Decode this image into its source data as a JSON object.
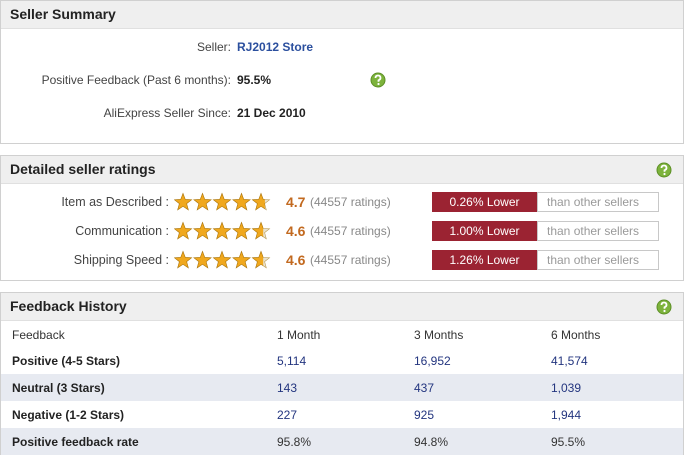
{
  "summary": {
    "title": "Seller Summary",
    "rows": [
      {
        "label": "Seller:",
        "value": "RJ2012 Store"
      },
      {
        "label": "Positive Feedback (Past 6 months):",
        "value": "95.5%"
      },
      {
        "label": "AliExpress Seller Since:",
        "value": "21 Dec 2010"
      }
    ]
  },
  "ratings": {
    "title": "Detailed seller ratings",
    "rows": [
      {
        "label": "Item as Described :",
        "rating": 4.7,
        "count": "(44557 ratings)",
        "compare": "0.26% Lower",
        "compare_note": "than other sellers"
      },
      {
        "label": "Communication :",
        "rating": 4.6,
        "count": "(44557 ratings)",
        "compare": "1.00% Lower",
        "compare_note": "than other sellers"
      },
      {
        "label": "Shipping Speed :",
        "rating": 4.6,
        "count": "(44557 ratings)",
        "compare": "1.26% Lower",
        "compare_note": "than other sellers"
      }
    ]
  },
  "history": {
    "title": "Feedback History",
    "table": {
      "header": [
        "Feedback",
        "1 Month",
        "3 Months",
        "6 Months"
      ],
      "rows": [
        [
          "Positive (4-5 Stars)",
          "5,114",
          "16,952",
          "41,574"
        ],
        [
          "Neutral (3 Stars)",
          "143",
          "437",
          "1,039"
        ],
        [
          "Negative (1-2 Stars)",
          "227",
          "925",
          "1,944"
        ],
        [
          "Positive feedback rate",
          "95.8%",
          "94.8%",
          "95.5%"
        ]
      ]
    }
  }
}
